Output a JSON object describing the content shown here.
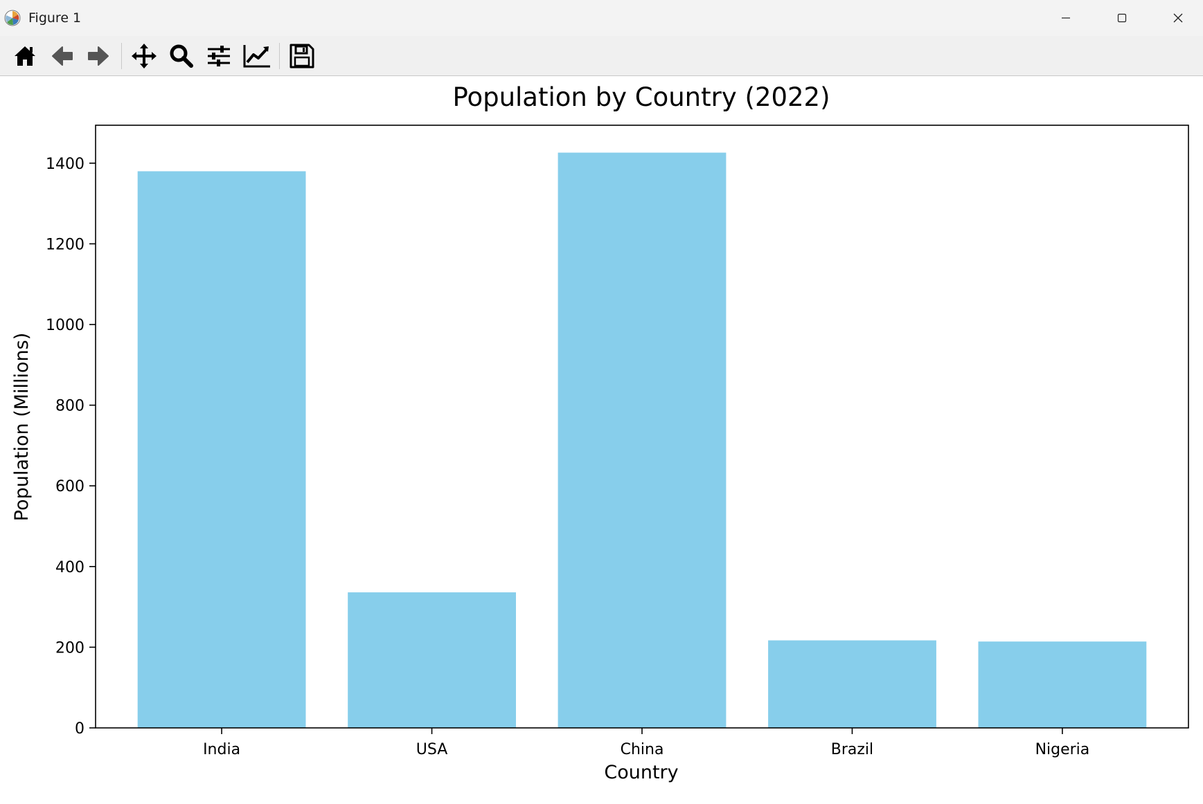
{
  "window": {
    "title": "Figure 1",
    "icon": "matplotlib-logo-icon",
    "controls": [
      "minimize-icon",
      "maximize-icon",
      "close-icon"
    ]
  },
  "toolbar": {
    "tools": [
      "home-icon",
      "back-arrow-icon",
      "forward-arrow-icon",
      "pan-icon",
      "zoom-icon",
      "subplots-config-icon",
      "edit-axis-icon",
      "save-icon"
    ]
  },
  "chart_data": {
    "type": "bar",
    "title": "Population by Country (2022)",
    "xlabel": "Country",
    "ylabel": "Population (Millions)",
    "categories": [
      "India",
      "USA",
      "China",
      "Brazil",
      "Nigeria"
    ],
    "values": [
      1380,
      336,
      1426,
      217,
      214
    ],
    "ylim": [
      0,
      1494
    ],
    "yticks": [
      0,
      200,
      400,
      600,
      800,
      1000,
      1200,
      1400
    ],
    "bar_color": "#87ceeb",
    "grid": false,
    "legend": null
  }
}
